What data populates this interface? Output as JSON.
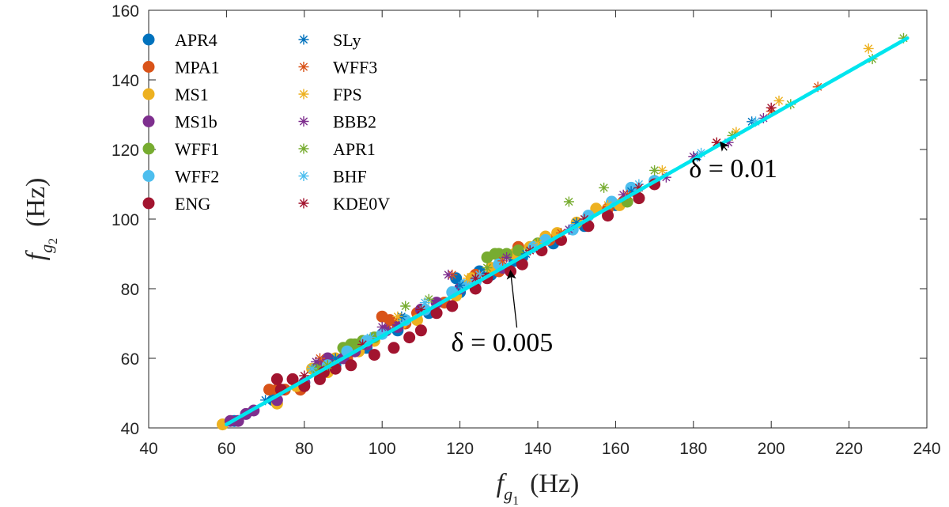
{
  "chart_data": {
    "type": "scatter",
    "xlabel": "f_g1 (Hz)",
    "ylabel": "f_g2 (Hz)",
    "xlim": [
      40,
      240
    ],
    "ylim": [
      40,
      160
    ],
    "xticks": [
      40,
      60,
      80,
      100,
      120,
      140,
      160,
      180,
      200,
      220,
      240
    ],
    "yticks": [
      40,
      60,
      80,
      100,
      120,
      140,
      160
    ],
    "grid": false,
    "legend_position": "top-left",
    "series": [
      {
        "name": "APR4",
        "marker": "dot",
        "color": "#0072BD",
        "points": [
          [
            62,
            42
          ],
          [
            72,
            48
          ],
          [
            80,
            53
          ],
          [
            88,
            58
          ],
          [
            96,
            63
          ],
          [
            104,
            68
          ],
          [
            112,
            73
          ],
          [
            120,
            79
          ],
          [
            128,
            84
          ],
          [
            136,
            89
          ],
          [
            144,
            93
          ],
          [
            152,
            98
          ],
          [
            160,
            104
          ],
          [
            165,
            108
          ],
          [
            119,
            83
          ],
          [
            125,
            85
          ],
          [
            134,
            88
          ]
        ]
      },
      {
        "name": "MPA1",
        "marker": "dot",
        "color": "#D95319",
        "points": [
          [
            71,
            51
          ],
          [
            73,
            51
          ],
          [
            75,
            51
          ],
          [
            79,
            51
          ],
          [
            91,
            60
          ],
          [
            100,
            72
          ],
          [
            102,
            71
          ],
          [
            105,
            71
          ],
          [
            106,
            70
          ],
          [
            109,
            73
          ],
          [
            116,
            76
          ],
          [
            124,
            84
          ],
          [
            130,
            85
          ],
          [
            135,
            92
          ],
          [
            143,
            94
          ],
          [
            158,
            103
          ],
          [
            162,
            105
          ],
          [
            165,
            108
          ]
        ]
      },
      {
        "name": "MS1",
        "marker": "dot",
        "color": "#EDB120",
        "points": [
          [
            59,
            41
          ],
          [
            73,
            47
          ],
          [
            78,
            52
          ],
          [
            82,
            57
          ],
          [
            83,
            57
          ],
          [
            84,
            55
          ],
          [
            86,
            56
          ],
          [
            88,
            60
          ],
          [
            94,
            62
          ],
          [
            98,
            65
          ],
          [
            105,
            70
          ],
          [
            109,
            71
          ],
          [
            119,
            78
          ],
          [
            123,
            83
          ],
          [
            128,
            86
          ],
          [
            134,
            90
          ],
          [
            138,
            92
          ],
          [
            142,
            95
          ],
          [
            145,
            96
          ],
          [
            150,
            99
          ],
          [
            155,
            103
          ],
          [
            161,
            104
          ]
        ]
      },
      {
        "name": "MS1b",
        "marker": "dot",
        "color": "#7E2F8E",
        "points": [
          [
            61,
            42
          ],
          [
            63,
            42
          ],
          [
            65,
            44
          ],
          [
            67,
            45
          ],
          [
            73,
            48
          ],
          [
            80,
            53
          ],
          [
            84,
            58
          ],
          [
            86,
            60
          ],
          [
            90,
            60
          ],
          [
            93,
            62
          ],
          [
            96,
            64
          ],
          [
            101,
            68
          ],
          [
            104,
            69
          ],
          [
            110,
            74
          ],
          [
            114,
            76
          ],
          [
            120,
            80
          ],
          [
            124,
            82
          ],
          [
            131,
            86
          ]
        ]
      },
      {
        "name": "WFF1",
        "marker": "dot",
        "color": "#77AC30",
        "points": [
          [
            83,
            57
          ],
          [
            90,
            63
          ],
          [
            92,
            64
          ],
          [
            93,
            64
          ],
          [
            95,
            65
          ],
          [
            98,
            66
          ],
          [
            127,
            89
          ],
          [
            129,
            90
          ],
          [
            130,
            90
          ],
          [
            132,
            90
          ],
          [
            135,
            91
          ],
          [
            140,
            93
          ],
          [
            163,
            105
          ],
          [
            166,
            106
          ]
        ]
      },
      {
        "name": "WFF2",
        "marker": "dot",
        "color": "#4DBEEE",
        "points": [
          [
            86,
            58
          ],
          [
            91,
            62
          ],
          [
            96,
            65
          ],
          [
            100,
            67
          ],
          [
            106,
            71
          ],
          [
            111,
            74
          ],
          [
            118,
            79
          ],
          [
            121,
            81
          ],
          [
            124,
            82
          ],
          [
            130,
            87
          ],
          [
            139,
            92
          ],
          [
            142,
            94
          ],
          [
            149,
            97
          ],
          [
            153,
            101
          ],
          [
            159,
            105
          ],
          [
            164,
            109
          ],
          [
            170,
            111
          ]
        ]
      },
      {
        "name": "ENG",
        "marker": "dot",
        "color": "#A2142F",
        "points": [
          [
            73,
            54
          ],
          [
            74,
            51
          ],
          [
            77,
            54
          ],
          [
            80,
            52
          ],
          [
            84,
            54
          ],
          [
            85,
            56
          ],
          [
            88,
            57
          ],
          [
            92,
            58
          ],
          [
            98,
            61
          ],
          [
            103,
            63
          ],
          [
            107,
            66
          ],
          [
            110,
            68
          ],
          [
            114,
            73
          ],
          [
            118,
            75
          ],
          [
            124,
            80
          ],
          [
            127,
            83
          ],
          [
            133,
            85
          ],
          [
            136,
            87
          ],
          [
            141,
            91
          ],
          [
            146,
            94
          ],
          [
            153,
            98
          ],
          [
            158,
            101
          ],
          [
            166,
            106
          ],
          [
            170,
            110
          ]
        ]
      },
      {
        "name": "SLy",
        "marker": "star",
        "color": "#0072BD",
        "points": [
          [
            70,
            48
          ],
          [
            88,
            60
          ],
          [
            105,
            72
          ],
          [
            120,
            81
          ],
          [
            137,
            90
          ],
          [
            150,
            99
          ],
          [
            164,
            108
          ],
          [
            181,
            118
          ],
          [
            195,
            128
          ]
        ]
      },
      {
        "name": "WFF3",
        "marker": "star",
        "color": "#D95319",
        "points": [
          [
            84,
            60
          ],
          [
            102,
            70
          ],
          [
            118,
            84
          ],
          [
            131,
            88
          ],
          [
            146,
            96
          ],
          [
            163,
            107
          ],
          [
            186,
            122
          ],
          [
            200,
            131
          ],
          [
            212,
            138
          ]
        ]
      },
      {
        "name": "FPS",
        "marker": "star",
        "color": "#EDB120",
        "points": [
          [
            86,
            58
          ],
          [
            104,
            72
          ],
          [
            122,
            83
          ],
          [
            140,
            93
          ],
          [
            158,
            104
          ],
          [
            172,
            114
          ],
          [
            191,
            125
          ],
          [
            202,
            134
          ],
          [
            225,
            149
          ]
        ]
      },
      {
        "name": "BBB2",
        "marker": "star",
        "color": "#7E2F8E",
        "points": [
          [
            83,
            59
          ],
          [
            100,
            69
          ],
          [
            117,
            84
          ],
          [
            132,
            89
          ],
          [
            148,
            97
          ],
          [
            162,
            107
          ],
          [
            173,
            112
          ],
          [
            180,
            118
          ],
          [
            189,
            122
          ],
          [
            198,
            129
          ]
        ]
      },
      {
        "name": "APR1",
        "marker": "star",
        "color": "#77AC30",
        "points": [
          [
            86,
            58
          ],
          [
            106,
            75
          ],
          [
            112,
            77
          ],
          [
            127,
            86
          ],
          [
            148,
            105
          ],
          [
            157,
            109
          ],
          [
            170,
            114
          ],
          [
            190,
            124
          ],
          [
            205,
            133
          ],
          [
            226,
            146
          ],
          [
            234,
            152
          ]
        ]
      },
      {
        "name": "BHF",
        "marker": "star",
        "color": "#4DBEEE",
        "points": [
          [
            82,
            57
          ],
          [
            97,
            66
          ],
          [
            111,
            76
          ],
          [
            125,
            84
          ],
          [
            139,
            92
          ],
          [
            152,
            100
          ],
          [
            166,
            110
          ],
          [
            182,
            119
          ],
          [
            196,
            128
          ]
        ]
      },
      {
        "name": "KDE0V",
        "marker": "star",
        "color": "#A2142F",
        "points": [
          [
            80,
            55
          ],
          [
            95,
            64
          ],
          [
            110,
            74
          ],
          [
            124,
            83
          ],
          [
            138,
            91
          ],
          [
            152,
            100
          ],
          [
            166,
            109
          ],
          [
            186,
            122
          ],
          [
            200,
            132
          ]
        ]
      }
    ],
    "fit_lines": [
      {
        "name": "delta-0.005",
        "style": "solid",
        "color": "#00E5EE",
        "x": [
          60,
          235
        ],
        "y": [
          41,
          152
        ]
      },
      {
        "name": "delta-0.01",
        "style": "dashed",
        "color": "#00E5EE",
        "x": [
          60,
          235
        ],
        "y": [
          41,
          152
        ]
      }
    ],
    "annotations": [
      {
        "name": "delta-0.005",
        "text": "δ = 0.005",
        "text_at": [
          133,
          62
        ],
        "arrow_to": [
          133,
          85
        ]
      },
      {
        "name": "delta-0.01",
        "text": "δ = 0.01",
        "text_at": [
          187,
          112
        ],
        "arrow_to": [
          187,
          122
        ]
      }
    ]
  }
}
